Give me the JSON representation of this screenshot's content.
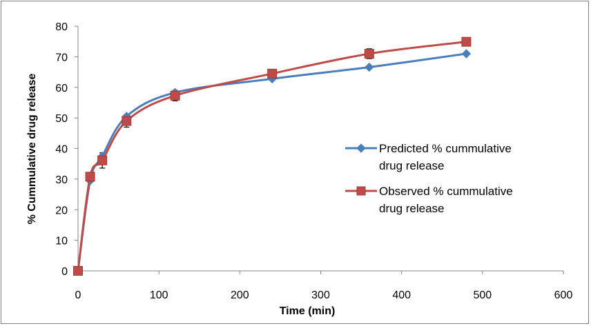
{
  "chart_data": {
    "type": "line",
    "title": "",
    "xlabel": "Time (min)",
    "ylabel": "% Cummulative drug release",
    "xlim": [
      0,
      600
    ],
    "ylim": [
      0,
      80
    ],
    "xticks": [
      0,
      100,
      200,
      300,
      400,
      500,
      600
    ],
    "yticks": [
      0,
      10,
      20,
      30,
      40,
      50,
      60,
      70,
      80
    ],
    "x": [
      0,
      15,
      30,
      60,
      120,
      240,
      360,
      480
    ],
    "grid": false,
    "legend_position": "right",
    "series": [
      {
        "name": "Predicted % cummulative drug release",
        "name_lines": [
          "Predicted % cummulative",
          "drug release"
        ],
        "values": [
          0,
          29.5,
          37.5,
          50.5,
          58.3,
          62.8,
          66.6,
          71.0
        ],
        "color": "#4a7ebb",
        "marker": "diamond"
      },
      {
        "name": "Observed % cummulative drug release",
        "name_lines": [
          "Observed % cummulative",
          "drug release"
        ],
        "values": [
          0,
          30.8,
          36.1,
          49.0,
          57.3,
          64.5,
          71.0,
          74.9
        ],
        "errors": [
          0,
          0,
          2.5,
          2.0,
          1.7,
          0,
          1.6,
          0
        ],
        "color": "#be4b48",
        "marker": "square"
      }
    ]
  }
}
